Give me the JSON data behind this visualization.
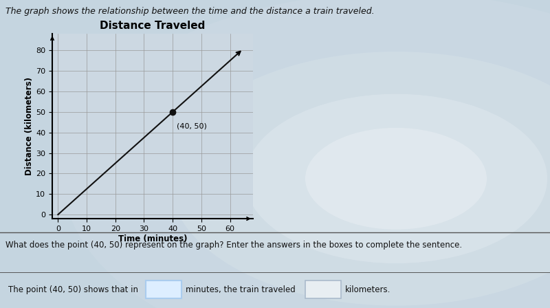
{
  "title": "Distance Traveled",
  "xlabel": "Time (minutes)",
  "ylabel": "Distance (kilometers)",
  "description": "The graph shows the relationship between the time and the distance a train traveled.",
  "line_x": [
    0,
    63
  ],
  "line_y": [
    0,
    78.75
  ],
  "point_x": 40,
  "point_y": 50,
  "point_label": "(40, 50)",
  "xlim": [
    -2,
    68
  ],
  "ylim": [
    -2,
    88
  ],
  "xticks": [
    0,
    10,
    20,
    30,
    40,
    50,
    60
  ],
  "yticks": [
    0,
    10,
    20,
    30,
    40,
    50,
    60,
    70,
    80
  ],
  "line_color": "#111111",
  "point_color": "#111111",
  "grid_color": "#999999",
  "bg_color": "#c5d5e0",
  "plot_bg_color": "#ccd8e2",
  "title_fontsize": 11,
  "label_fontsize": 8.5,
  "tick_fontsize": 8,
  "question_text": "What does the point (40, 50) represent on the graph? Enter the answers in the boxes to complete the sentence.",
  "sentence_prefix": "The point (40, 50) shows that in",
  "sentence_mid": "minutes, the train traveled",
  "sentence_suffix": "kilometers.",
  "box1_color": "#aaccee",
  "box1_facecolor": "#ddeeff",
  "box2_color": "#aabbcc",
  "box2_facecolor": "#e8eef2",
  "separator_color": "#555555",
  "text_color": "#111111"
}
